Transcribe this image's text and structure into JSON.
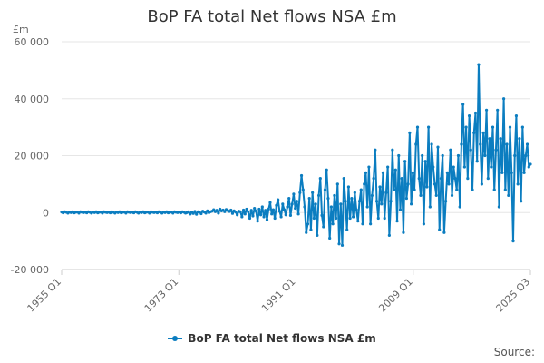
{
  "chart_data": {
    "type": "line",
    "title": "BoP FA total Net flows NSA £m",
    "ylabel": "£m",
    "xlabel": "",
    "ylim": [
      -20000,
      60000
    ],
    "yticks": [
      -20000,
      0,
      20000,
      40000,
      60000
    ],
    "ytick_labels": [
      "-20 000",
      "0",
      "20 000",
      "40 000",
      "60 000"
    ],
    "x_start": "1955 Q1",
    "x_end": "2025 Q3",
    "xtick_labels": [
      "1955 Q1",
      "1973 Q1",
      "1991 Q1",
      "2009 Q1",
      "2025 Q3"
    ],
    "legend_placement": "bottom-center",
    "source": "Source:",
    "series": [
      {
        "name": "BoP FA total Net flows NSA £m",
        "color": "#0b7dc0",
        "values": [
          200,
          -100,
          300,
          100,
          -200,
          200,
          0,
          300,
          -100,
          100,
          200,
          -200,
          300,
          100,
          0,
          200,
          -100,
          300,
          100,
          -200,
          200,
          0,
          300,
          -100,
          100,
          200,
          -200,
          300,
          100,
          0,
          200,
          -100,
          300,
          100,
          -200,
          200,
          0,
          300,
          -100,
          100,
          200,
          -200,
          300,
          100,
          0,
          200,
          -100,
          300,
          100,
          -200,
          200,
          0,
          300,
          -100,
          100,
          200,
          -200,
          300,
          100,
          0,
          200,
          -100,
          300,
          100,
          -200,
          200,
          0,
          300,
          -100,
          100,
          200,
          -200,
          300,
          100,
          0,
          200,
          -100,
          300,
          100,
          -200,
          0,
          300,
          -500,
          200,
          -300,
          400,
          -600,
          300,
          100,
          -400,
          500,
          200,
          -200,
          600,
          0,
          300,
          500,
          1000,
          300,
          800,
          -200,
          1200,
          600,
          900,
          300,
          1100,
          700,
          400,
          900,
          -300,
          600,
          200,
          -800,
          500,
          300,
          -1500,
          900,
          -500,
          1200,
          300,
          -2000,
          800,
          -1200,
          1500,
          500,
          -3000,
          1200,
          -800,
          2000,
          -1500,
          800,
          -2500,
          1200,
          3500,
          -500,
          1000,
          -2000,
          2500,
          4500,
          500,
          -1500,
          3000,
          1000,
          -800,
          2000,
          5000,
          -1000,
          3000,
          6500,
          1500,
          4000,
          -500,
          7000,
          13000,
          8000,
          2000,
          -7000,
          -4000,
          5000,
          -6000,
          7000,
          -2000,
          3000,
          -8000,
          6000,
          12000,
          -1000,
          -5000,
          8000,
          15000,
          5000,
          -9000,
          2000,
          -4000,
          6000,
          -2000,
          10000,
          -11000,
          3000,
          -11500,
          12000,
          4000,
          -6000,
          9000,
          -2000,
          5000,
          -1500,
          7000,
          1000,
          -3000,
          4000,
          8000,
          -4000,
          10000,
          14000,
          2000,
          16000,
          -4000,
          6000,
          12000,
          22000,
          4000,
          -2000,
          9000,
          3000,
          14000,
          -2000,
          7000,
          16000,
          -8000,
          4000,
          22000,
          8000,
          15000,
          -3000,
          20000,
          1000,
          12000,
          -7000,
          18000,
          5000,
          10000,
          28000,
          3000,
          14000,
          8000,
          24000,
          30000,
          12000,
          6000,
          20000,
          -4000,
          18000,
          9000,
          30000,
          2000,
          24000,
          16000,
          10000,
          6000,
          23000,
          -6000,
          12000,
          20000,
          -7000,
          4000,
          14000,
          10000,
          22000,
          6000,
          16000,
          12000,
          8000,
          20000,
          2000,
          24000,
          38000,
          16000,
          30000,
          12000,
          34000,
          22000,
          8000,
          28000,
          35000,
          18000,
          52000,
          24000,
          10000,
          28000,
          20000,
          36000,
          12000,
          26000,
          16000,
          30000,
          8000,
          22000,
          36000,
          2000,
          26000,
          14000,
          40000,
          8000,
          24000,
          6000,
          30000,
          14000,
          -10000,
          20000,
          34000,
          10000,
          26000,
          4000,
          30000,
          14000,
          20000,
          24000,
          16000,
          17000
        ]
      }
    ]
  }
}
